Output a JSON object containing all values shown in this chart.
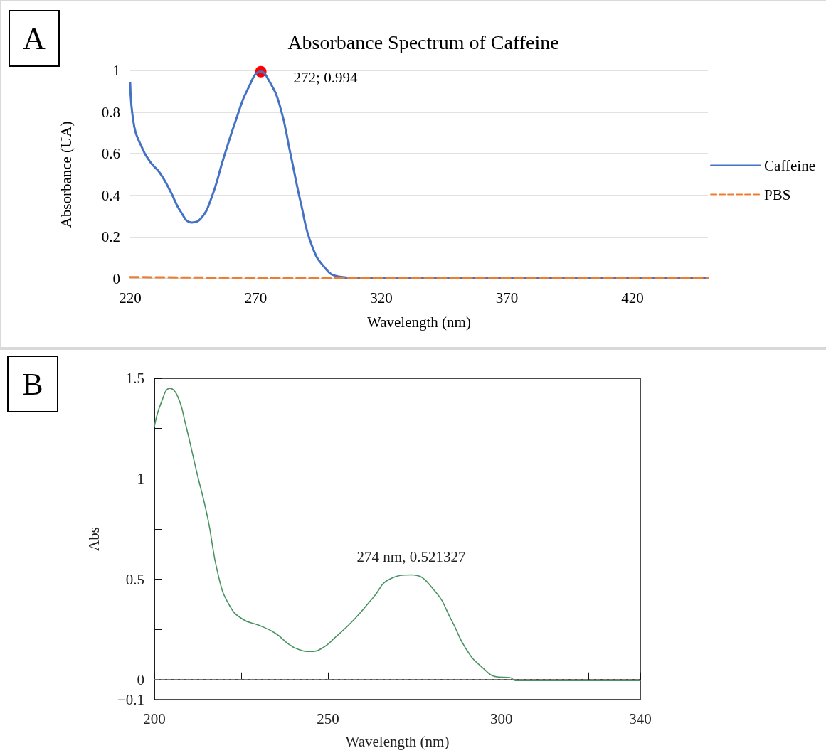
{
  "chart_data": [
    {
      "type": "line",
      "title": "Absorbance Spectrum of Caffeine",
      "xlabel": "Wavelength (nm)",
      "ylabel": "Absorbance (UA)",
      "xlim": [
        220,
        450
      ],
      "xticks": [
        220,
        270,
        320,
        370,
        420
      ],
      "ylim": [
        0,
        1
      ],
      "yticks": [
        0,
        0.2,
        0.4,
        0.6,
        0.8,
        1
      ],
      "grid": "y",
      "legend": "right",
      "annotations": [
        "A",
        {
          "text": "272; 0.994",
          "x": 272,
          "y": 0.994
        }
      ],
      "series": [
        {
          "name": "Caffeine",
          "color": "#4472c4",
          "x": [
            220,
            221.6,
            224.3,
            228,
            231.7,
            236,
            240.2,
            244.5,
            248.2,
            252.4,
            257.2,
            262.6,
            266.8,
            272,
            275.3,
            279.6,
            283.8,
            288,
            292.3,
            297.7,
            303,
            310,
            350,
            400,
            450
          ],
          "values": [
            0.94,
            0.73,
            0.64,
            0.56,
            0.51,
            0.42,
            0.32,
            0.27,
            0.29,
            0.39,
            0.58,
            0.78,
            0.91,
            0.994,
            0.95,
            0.83,
            0.6,
            0.36,
            0.16,
            0.05,
            0.01,
            0.003,
            0.003,
            0.003,
            0.003
          ]
        },
        {
          "name": "PBS",
          "color": "#ed7d31",
          "line_style": "dashed",
          "x": [
            220,
            260,
            300,
            350,
            400,
            450
          ],
          "values": [
            0.008,
            0.005,
            0.004,
            0.003,
            0.003,
            0.003
          ]
        }
      ]
    },
    {
      "type": "line",
      "xlabel": "Wavelength (nm)",
      "ylabel": "Abs",
      "xlim": [
        200,
        340
      ],
      "xticks": [
        200,
        {
          "value": 225,
          "label": null
        },
        250,
        {
          "value": 275,
          "label": null
        },
        300,
        {
          "value": 325,
          "label": null
        },
        340
      ],
      "ylim": [
        -0.1,
        1.5
      ],
      "yticks": [
        {
          "value": -0.1,
          "label": "−0.1"
        },
        0,
        {
          "value": 0.25,
          "label": null
        },
        0.5,
        {
          "value": 0.75,
          "label": null
        },
        1,
        {
          "value": 1.25,
          "label": null
        },
        1.5
      ],
      "grid": false,
      "ref_lines": [
        {
          "axis": "y",
          "value": 0,
          "color": "#888888",
          "line_style": "dashed"
        }
      ],
      "annotations": [
        "B",
        {
          "text": "274 nm, 0.521327",
          "x": 274,
          "y": 0.521327
        }
      ],
      "series": [
        {
          "color": "#4a9363",
          "x": [
            200,
            202,
            204.5,
            206.7,
            209,
            212.1,
            215.3,
            218.4,
            221.6,
            225.5,
            230.2,
            234.9,
            238.8,
            241.9,
            244.7,
            248.2,
            252.1,
            257.6,
            263.1,
            267.8,
            274,
            280.5,
            285.8,
            289.6,
            294.1,
            299.4,
            302.4,
            304,
            320,
            340
          ],
          "values": [
            1.26,
            1.38,
            1.45,
            1.41,
            1.27,
            1.04,
            0.81,
            0.52,
            0.37,
            0.3,
            0.27,
            0.23,
            0.175,
            0.148,
            0.14,
            0.155,
            0.21,
            0.3,
            0.41,
            0.5,
            0.521,
            0.447,
            0.289,
            0.158,
            0.066,
            0.012,
            0.01,
            -0.005,
            -0.005,
            -0.005
          ]
        }
      ]
    }
  ]
}
